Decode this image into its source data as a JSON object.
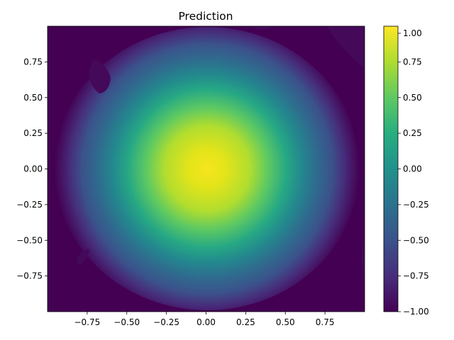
{
  "chart_data": {
    "type": "heatmap",
    "title": "Prediction",
    "xlabel": "",
    "ylabel": "",
    "xlim": [
      -1.0,
      1.0
    ],
    "ylim": [
      -1.0,
      1.0
    ],
    "x_ticks": [
      -0.75,
      -0.5,
      -0.25,
      0.0,
      0.25,
      0.5,
      0.75
    ],
    "x_tick_labels": [
      "−0.75",
      "−0.50",
      "−0.25",
      "0.00",
      "0.25",
      "0.50",
      "0.75"
    ],
    "y_ticks": [
      0.75,
      0.5,
      0.25,
      0.0,
      -0.25,
      -0.5,
      -0.75
    ],
    "y_tick_labels": [
      "0.75",
      "0.50",
      "0.25",
      "0.00",
      "−0.25",
      "−0.50",
      "−0.75"
    ],
    "colormap": "viridis",
    "colorbar": {
      "range": [
        -1.0,
        1.0
      ],
      "ticks": [
        1.0,
        0.75,
        0.5,
        0.25,
        0.0,
        -0.25,
        -0.5,
        -0.75,
        -1.0
      ],
      "tick_labels": [
        "1.00",
        "0.75",
        "0.50",
        "0.25",
        "0.00",
        "−0.25",
        "−0.50",
        "−0.75",
        "−1.00"
      ]
    },
    "field": {
      "description": "gaussian bump",
      "center": [
        0.0,
        0.0
      ],
      "peak": 1.05,
      "baseline": -0.97,
      "sigma": 0.3
    },
    "grid": false
  }
}
